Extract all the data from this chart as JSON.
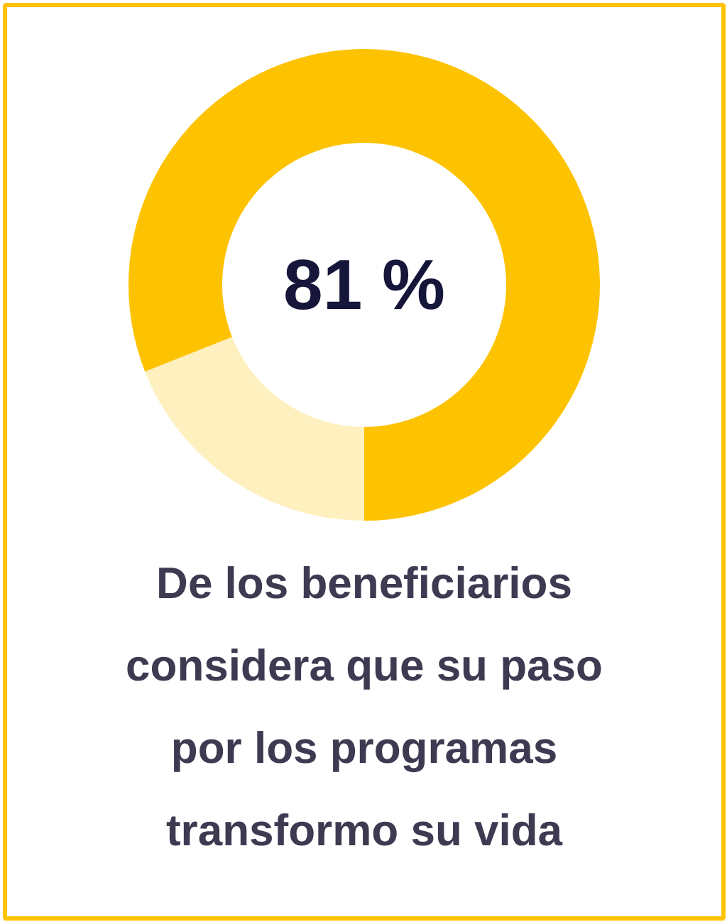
{
  "chart_data": {
    "type": "donut",
    "categories": [
      null,
      null
    ],
    "values": [
      81,
      19
    ],
    "colors": [
      "#fdc300",
      "#fff0c0"
    ],
    "value_labels": [
      "81 %",
      null
    ],
    "annotations": [
      "De los beneficiarios considera que su paso por los programas transformo su vida"
    ]
  }
}
